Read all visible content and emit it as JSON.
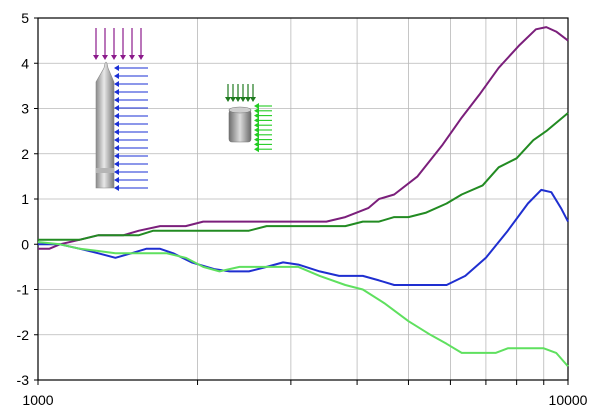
{
  "chart_data": {
    "type": "line",
    "x_scale": "log",
    "xlim": [
      1000,
      10000
    ],
    "ylim": [
      -3,
      5
    ],
    "grid": true,
    "x_tick_labels": [
      "1000",
      "10000"
    ],
    "y_ticks": [
      5,
      4,
      3,
      2,
      1,
      0,
      -1,
      -2,
      -3
    ],
    "y_tick_labels": [
      "5",
      "4",
      "3",
      "2",
      "1",
      "0",
      "-1",
      "-2",
      "-3"
    ],
    "series": [
      {
        "color": "#7b1f7b",
        "points": [
          [
            1000,
            -0.1
          ],
          [
            1050,
            -0.1
          ],
          [
            1100,
            0.0
          ],
          [
            1200,
            0.1
          ],
          [
            1300,
            0.2
          ],
          [
            1450,
            0.2
          ],
          [
            1550,
            0.3
          ],
          [
            1700,
            0.4
          ],
          [
            1900,
            0.4
          ],
          [
            2050,
            0.5
          ],
          [
            2500,
            0.5
          ],
          [
            3200,
            0.5
          ],
          [
            3500,
            0.5
          ],
          [
            3800,
            0.6
          ],
          [
            4200,
            0.8
          ],
          [
            4400,
            1.0
          ],
          [
            4700,
            1.1
          ],
          [
            5200,
            1.5
          ],
          [
            5800,
            2.2
          ],
          [
            6300,
            2.8
          ],
          [
            6800,
            3.3
          ],
          [
            7400,
            3.9
          ],
          [
            8100,
            4.4
          ],
          [
            8700,
            4.75
          ],
          [
            9100,
            4.8
          ],
          [
            9500,
            4.7
          ],
          [
            10000,
            4.5
          ]
        ]
      },
      {
        "color": "#228b22",
        "points": [
          [
            1000,
            0.1
          ],
          [
            1100,
            0.1
          ],
          [
            1200,
            0.1
          ],
          [
            1300,
            0.2
          ],
          [
            1450,
            0.2
          ],
          [
            1550,
            0.2
          ],
          [
            1650,
            0.3
          ],
          [
            2000,
            0.3
          ],
          [
            2500,
            0.3
          ],
          [
            2700,
            0.4
          ],
          [
            3000,
            0.4
          ],
          [
            3500,
            0.4
          ],
          [
            3800,
            0.4
          ],
          [
            4100,
            0.5
          ],
          [
            4400,
            0.5
          ],
          [
            4700,
            0.6
          ],
          [
            5000,
            0.6
          ],
          [
            5400,
            0.7
          ],
          [
            5900,
            0.9
          ],
          [
            6300,
            1.1
          ],
          [
            6900,
            1.3
          ],
          [
            7400,
            1.7
          ],
          [
            8000,
            1.9
          ],
          [
            8600,
            2.3
          ],
          [
            9100,
            2.5
          ],
          [
            10000,
            2.9
          ]
        ]
      },
      {
        "color": "#1f2fd0",
        "points": [
          [
            1000,
            0.0
          ],
          [
            1100,
            0.0
          ],
          [
            1200,
            -0.1
          ],
          [
            1300,
            -0.2
          ],
          [
            1400,
            -0.3
          ],
          [
            1500,
            -0.2
          ],
          [
            1600,
            -0.1
          ],
          [
            1700,
            -0.1
          ],
          [
            1800,
            -0.2
          ],
          [
            1950,
            -0.4
          ],
          [
            2150,
            -0.55
          ],
          [
            2300,
            -0.6
          ],
          [
            2500,
            -0.6
          ],
          [
            2700,
            -0.5
          ],
          [
            2900,
            -0.4
          ],
          [
            3100,
            -0.45
          ],
          [
            3400,
            -0.6
          ],
          [
            3700,
            -0.7
          ],
          [
            4100,
            -0.7
          ],
          [
            4400,
            -0.8
          ],
          [
            4700,
            -0.9
          ],
          [
            5000,
            -0.9
          ],
          [
            5500,
            -0.9
          ],
          [
            5900,
            -0.9
          ],
          [
            6400,
            -0.7
          ],
          [
            7000,
            -0.3
          ],
          [
            7700,
            0.3
          ],
          [
            8400,
            0.9
          ],
          [
            8900,
            1.2
          ],
          [
            9300,
            1.15
          ],
          [
            9700,
            0.8
          ],
          [
            10000,
            0.5
          ]
        ]
      },
      {
        "color": "#5fe05f",
        "points": [
          [
            1000,
            0.05
          ],
          [
            1100,
            0.0
          ],
          [
            1200,
            -0.1
          ],
          [
            1300,
            -0.15
          ],
          [
            1400,
            -0.2
          ],
          [
            1600,
            -0.2
          ],
          [
            1750,
            -0.2
          ],
          [
            1900,
            -0.3
          ],
          [
            2050,
            -0.5
          ],
          [
            2200,
            -0.6
          ],
          [
            2400,
            -0.5
          ],
          [
            2700,
            -0.5
          ],
          [
            3100,
            -0.5
          ],
          [
            3400,
            -0.7
          ],
          [
            3800,
            -0.9
          ],
          [
            4100,
            -1.0
          ],
          [
            4500,
            -1.3
          ],
          [
            5000,
            -1.7
          ],
          [
            5500,
            -2.0
          ],
          [
            5900,
            -2.2
          ],
          [
            6300,
            -2.4
          ],
          [
            6800,
            -2.4
          ],
          [
            7300,
            -2.4
          ],
          [
            7700,
            -2.3
          ],
          [
            8300,
            -2.3
          ],
          [
            9000,
            -2.3
          ],
          [
            9500,
            -2.4
          ],
          [
            10000,
            -2.7
          ]
        ]
      }
    ]
  },
  "insets": {
    "pencil_arrows_top_color": "#8b1a8b",
    "pencil_arrows_side_color": "#1a2fd6",
    "small_arrows_top_color": "#1e7a1e",
    "small_arrows_side_color": "#22cc22"
  }
}
